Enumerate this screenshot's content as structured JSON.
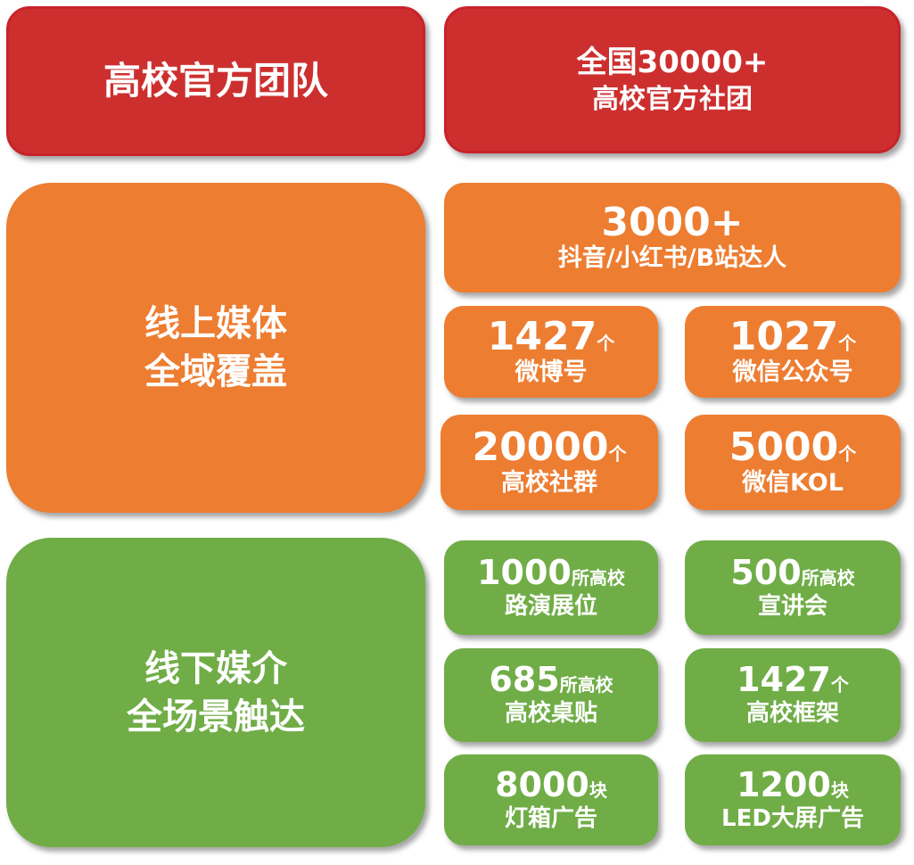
{
  "colors": {
    "red": "#CD2F2F",
    "orange": "#ED7D31",
    "green": "#70AD47",
    "text": "#FFFFFF"
  },
  "team": {
    "title": "高校官方团队",
    "stat_line1": "全国30000+",
    "stat_line2": "高校官方社团"
  },
  "online": {
    "title_line1": "线上媒体",
    "title_line2": "全域覆盖",
    "kol": {
      "number": "3000+",
      "label": "抖音/小红书/B站达人"
    },
    "items": [
      {
        "number": "1427",
        "unit": "个",
        "label": "微博号"
      },
      {
        "number": "1027",
        "unit": "个",
        "label": "微信公众号"
      },
      {
        "number": "20000",
        "unit": "个",
        "label": "高校社群"
      },
      {
        "number": "5000",
        "unit": "个",
        "label": "微信KOL"
      }
    ]
  },
  "offline": {
    "title_line1": "线下媒介",
    "title_line2": "全场景触达",
    "items": [
      {
        "number": "1000",
        "unit": "所高校",
        "label": "路演展位"
      },
      {
        "number": "500",
        "unit": "所高校",
        "label": "宣讲会"
      },
      {
        "number": "685",
        "unit": "所高校",
        "label": "高校桌贴"
      },
      {
        "number": "1427",
        "unit": "个",
        "label": "高校框架"
      },
      {
        "number": "8000",
        "unit": "块",
        "label": "灯箱广告"
      },
      {
        "number": "1200",
        "unit": "块",
        "label": "LED大屏广告"
      }
    ]
  }
}
